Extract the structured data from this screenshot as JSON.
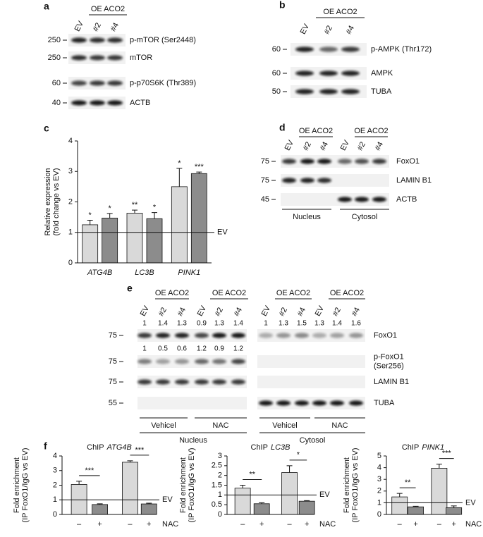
{
  "blots": {
    "a": {
      "label": "a",
      "groups": [
        "OE ACO2"
      ],
      "lanes": [
        "EV",
        "#2",
        "#4"
      ],
      "rows": [
        {
          "mw": 250,
          "name": "p-mTOR (Ser2448)"
        },
        {
          "mw": 250,
          "name": "mTOR"
        },
        {
          "mw": 60,
          "name": "p-p70S6K (Thr389)"
        },
        {
          "mw": 40,
          "name": "ACTB"
        }
      ]
    },
    "b": {
      "label": "b",
      "groups": [
        "OE ACO2"
      ],
      "lanes": [
        "EV",
        "#2",
        "#4"
      ],
      "rows": [
        {
          "mw": 60,
          "name": "p-AMPK (Thr172)"
        },
        {
          "mw": 60,
          "name": "AMPK"
        },
        {
          "mw": 50,
          "name": "TUBA"
        }
      ]
    },
    "d": {
      "label": "d",
      "groups": [
        "OE ACO2",
        "OE ACO2"
      ],
      "lanes": [
        "EV",
        "#2",
        "#4",
        "EV",
        "#2",
        "#4"
      ],
      "rows": [
        {
          "mw": 75,
          "name": "FoxO1"
        },
        {
          "mw": 75,
          "name": "LAMIN B1"
        },
        {
          "mw": 45,
          "name": "ACTB"
        }
      ],
      "fractions": [
        "Nucleus",
        "Cytosol"
      ]
    },
    "e": {
      "label": "e",
      "groups": [
        "OE ACO2",
        "OE ACO2",
        "OE ACO2",
        "OE ACO2"
      ],
      "lanes": [
        "EV",
        "#2",
        "#4",
        "EV",
        "#2",
        "#4",
        "EV",
        "#2",
        "#4",
        "EV",
        "#2",
        "#4"
      ],
      "quant": [
        [
          1,
          1.4,
          1.3,
          0.9,
          1.3,
          1.4,
          1,
          1.3,
          1.5,
          1.3,
          1.4,
          1.6
        ],
        [
          1,
          0.5,
          0.6,
          1.2,
          0.9,
          1.2
        ]
      ],
      "rows": [
        {
          "mw": 75,
          "name": "FoxO1"
        },
        {
          "mw": 75,
          "name": [
            "p-FoxO1",
            "(Ser256)"
          ]
        },
        {
          "mw": 75,
          "name": "LAMIN B1"
        },
        {
          "mw": 55,
          "name": "TUBA"
        }
      ],
      "treatments": [
        "Vehicel",
        "NAC",
        "Vehicel",
        "NAC"
      ],
      "fractions": [
        "Nucleus",
        "Cytosol"
      ]
    }
  },
  "chart_data": [
    {
      "type": "bar",
      "panel": "c",
      "ylabel": [
        "Relative expression",
        "(fold change vs EV)"
      ],
      "categories": [
        "ATG4B",
        "LC3B",
        "PINK1"
      ],
      "series": [
        {
          "color": "#d9d9d9",
          "values": [
            1.25,
            1.63,
            2.5
          ],
          "errors": [
            0.15,
            0.1,
            0.6
          ],
          "significance": [
            "*",
            "**",
            "*"
          ]
        },
        {
          "color": "#8c8c8c",
          "values": [
            1.47,
            1.45,
            2.93
          ],
          "errors": [
            0.15,
            0.2,
            0.05
          ],
          "significance": [
            "*",
            "*",
            "***"
          ]
        }
      ],
      "ylim": [
        0,
        4
      ],
      "yticks": [
        0,
        1,
        2,
        3,
        4
      ],
      "ref_line": {
        "value": 1,
        "label": "EV"
      }
    },
    {
      "type": "bar",
      "panel": "f",
      "title": "ChIP",
      "gene": "ATG4B",
      "ylabel": [
        "Fold enrichment",
        "(IP FoxO1/IgG vs EV)"
      ],
      "categories": [
        "–",
        "+",
        "–",
        "+"
      ],
      "xlabel": "NAC",
      "values": [
        2.05,
        0.68,
        3.57,
        0.72
      ],
      "errors": [
        0.22,
        0.05,
        0.1,
        0.05
      ],
      "colors": [
        "#d9d9d9",
        "#8c8c8c",
        "#d9d9d9",
        "#8c8c8c"
      ],
      "significance": [
        "***",
        "***"
      ],
      "ylim": [
        0,
        4
      ],
      "yticks": [
        0,
        1,
        2,
        3,
        4
      ],
      "ref_line": {
        "value": 1,
        "label": "EV"
      }
    },
    {
      "type": "bar",
      "title": "ChIP",
      "gene": "LC3B",
      "ylabel": [
        "Fold enrichment",
        "(IP FoxO1/IgG vs EV)"
      ],
      "categories": [
        "–",
        "+",
        "–",
        "+"
      ],
      "xlabel": "NAC",
      "values": [
        1.35,
        0.55,
        2.15,
        0.68
      ],
      "errors": [
        0.15,
        0.05,
        0.35,
        0.03
      ],
      "colors": [
        "#d9d9d9",
        "#8c8c8c",
        "#d9d9d9",
        "#8c8c8c"
      ],
      "significance": [
        "**",
        "*"
      ],
      "ylim": [
        0,
        3
      ],
      "yticks": [
        0,
        0.5,
        1,
        1.5,
        2,
        2.5,
        3
      ],
      "ref_line": {
        "value": 1,
        "label": "EV"
      }
    },
    {
      "type": "bar",
      "title": "ChIP",
      "gene": "PINK1",
      "ylabel": [
        "Fold enrichment",
        "(IP FoxO1/IgG vs EV)"
      ],
      "categories": [
        "–",
        "+",
        "–",
        "+"
      ],
      "xlabel": "NAC",
      "values": [
        1.5,
        0.65,
        3.95,
        0.58
      ],
      "errors": [
        0.3,
        0.05,
        0.35,
        0.15
      ],
      "colors": [
        "#d9d9d9",
        "#8c8c8c",
        "#d9d9d9",
        "#8c8c8c"
      ],
      "significance": [
        "**",
        "***"
      ],
      "ylim": [
        0,
        5
      ],
      "yticks": [
        0,
        1,
        2,
        3,
        4,
        5
      ],
      "ref_line": {
        "value": 1,
        "label": "EV"
      }
    }
  ]
}
